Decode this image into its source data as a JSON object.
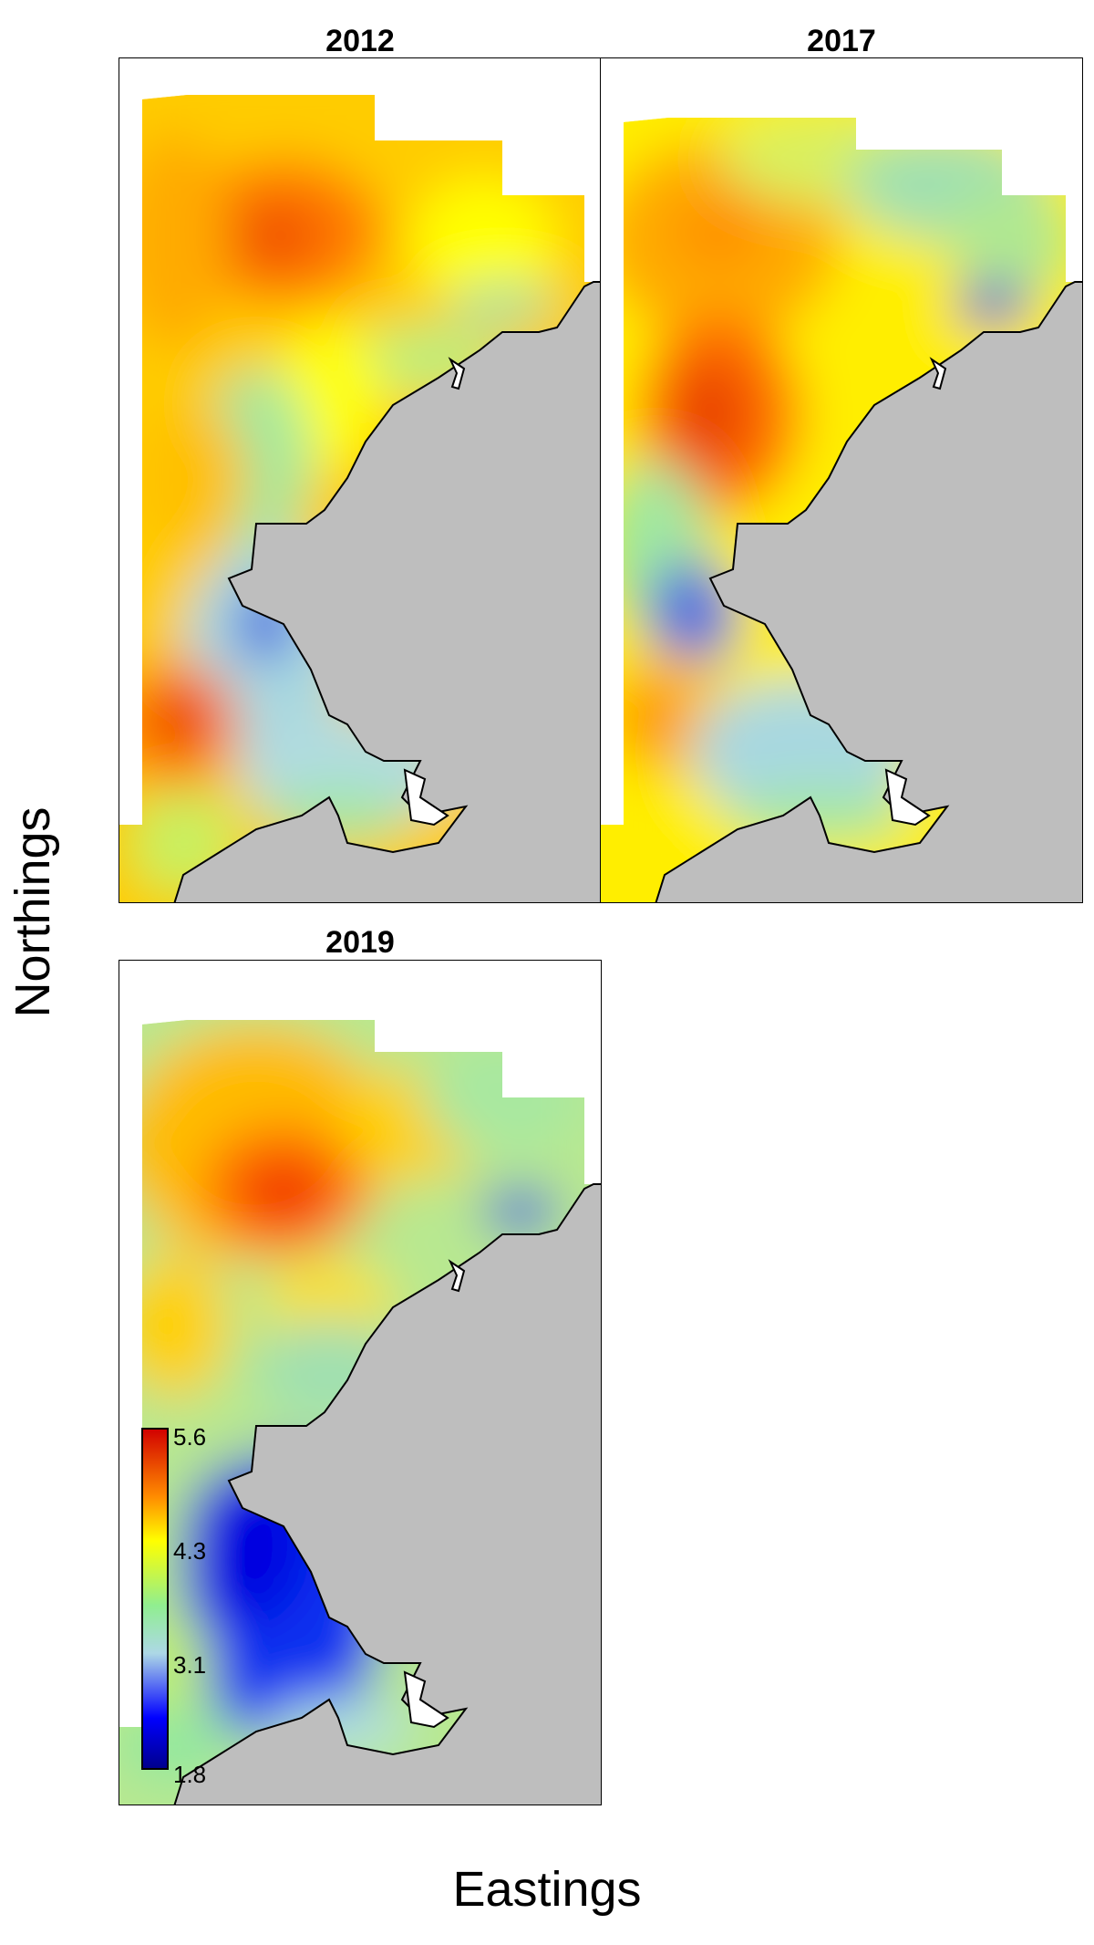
{
  "xlabel": "Eastings",
  "ylabel": "Northings",
  "panels": [
    {
      "title": "2012"
    },
    {
      "title": "2017"
    },
    {
      "title": "2019"
    }
  ],
  "colorbar": {
    "ticks": [
      "5.6",
      "4.3",
      "3.1",
      "1.8"
    ],
    "colors": [
      "#d10000",
      "#ff8c00",
      "#ffff00",
      "#90ee90",
      "#add8e6",
      "#0000ff",
      "#00008b"
    ]
  },
  "colors": {
    "land": "#bebebe",
    "coast": "#000000"
  }
}
